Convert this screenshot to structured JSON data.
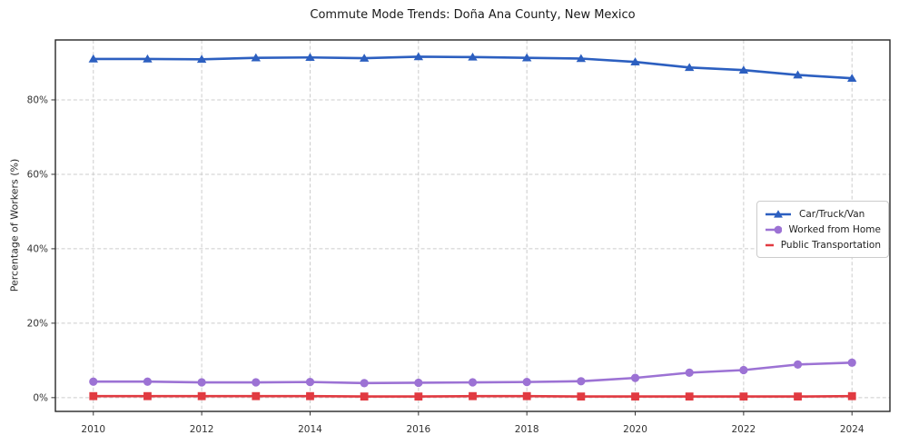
{
  "chart_data": {
    "type": "line",
    "title": "Commute Mode Trends: Doña Ana County, New Mexico",
    "xlabel": "",
    "ylabel": "Percentage of Workers (%)",
    "x": [
      2010,
      2011,
      2012,
      2013,
      2014,
      2015,
      2016,
      2017,
      2018,
      2019,
      2020,
      2021,
      2022,
      2023,
      2024
    ],
    "series": [
      {
        "name": "Car/Truck/Van",
        "marker": "triangle",
        "color": "#2c5fc0",
        "values": [
          91.0,
          91.0,
          90.9,
          91.3,
          91.4,
          91.2,
          91.6,
          91.5,
          91.3,
          91.1,
          90.2,
          88.7,
          88.0,
          86.7,
          85.8
        ]
      },
      {
        "name": "Worked from Home",
        "marker": "circle",
        "color": "#9c72d4",
        "values": [
          4.3,
          4.3,
          4.1,
          4.1,
          4.2,
          3.9,
          4.0,
          4.1,
          4.2,
          4.4,
          5.3,
          6.7,
          7.4,
          8.9,
          9.4
        ]
      },
      {
        "name": "Public Transportation",
        "marker": "square",
        "color": "#e13a41",
        "values": [
          0.4,
          0.4,
          0.4,
          0.4,
          0.4,
          0.3,
          0.3,
          0.4,
          0.4,
          0.3,
          0.3,
          0.3,
          0.3,
          0.3,
          0.4
        ]
      }
    ],
    "xticks": [
      2010,
      2012,
      2014,
      2016,
      2018,
      2020,
      2022,
      2024
    ],
    "xtick_labels": [
      "2010",
      "2012",
      "2014",
      "2016",
      "2018",
      "2020",
      "2022",
      "2024"
    ],
    "yticks": [
      0,
      20,
      40,
      60,
      80
    ],
    "ytick_labels": [
      "0%",
      "20%",
      "40%",
      "60%",
      "80%"
    ],
    "xlim": [
      2009.3,
      2024.7
    ],
    "ylim": [
      -3.7,
      96.1
    ],
    "grid": true,
    "legend_position": "center-right"
  },
  "colors": {
    "grid": "#cccccc",
    "spine": "#262626",
    "tick_text": "#333333",
    "legend_border": "#cccccc"
  }
}
